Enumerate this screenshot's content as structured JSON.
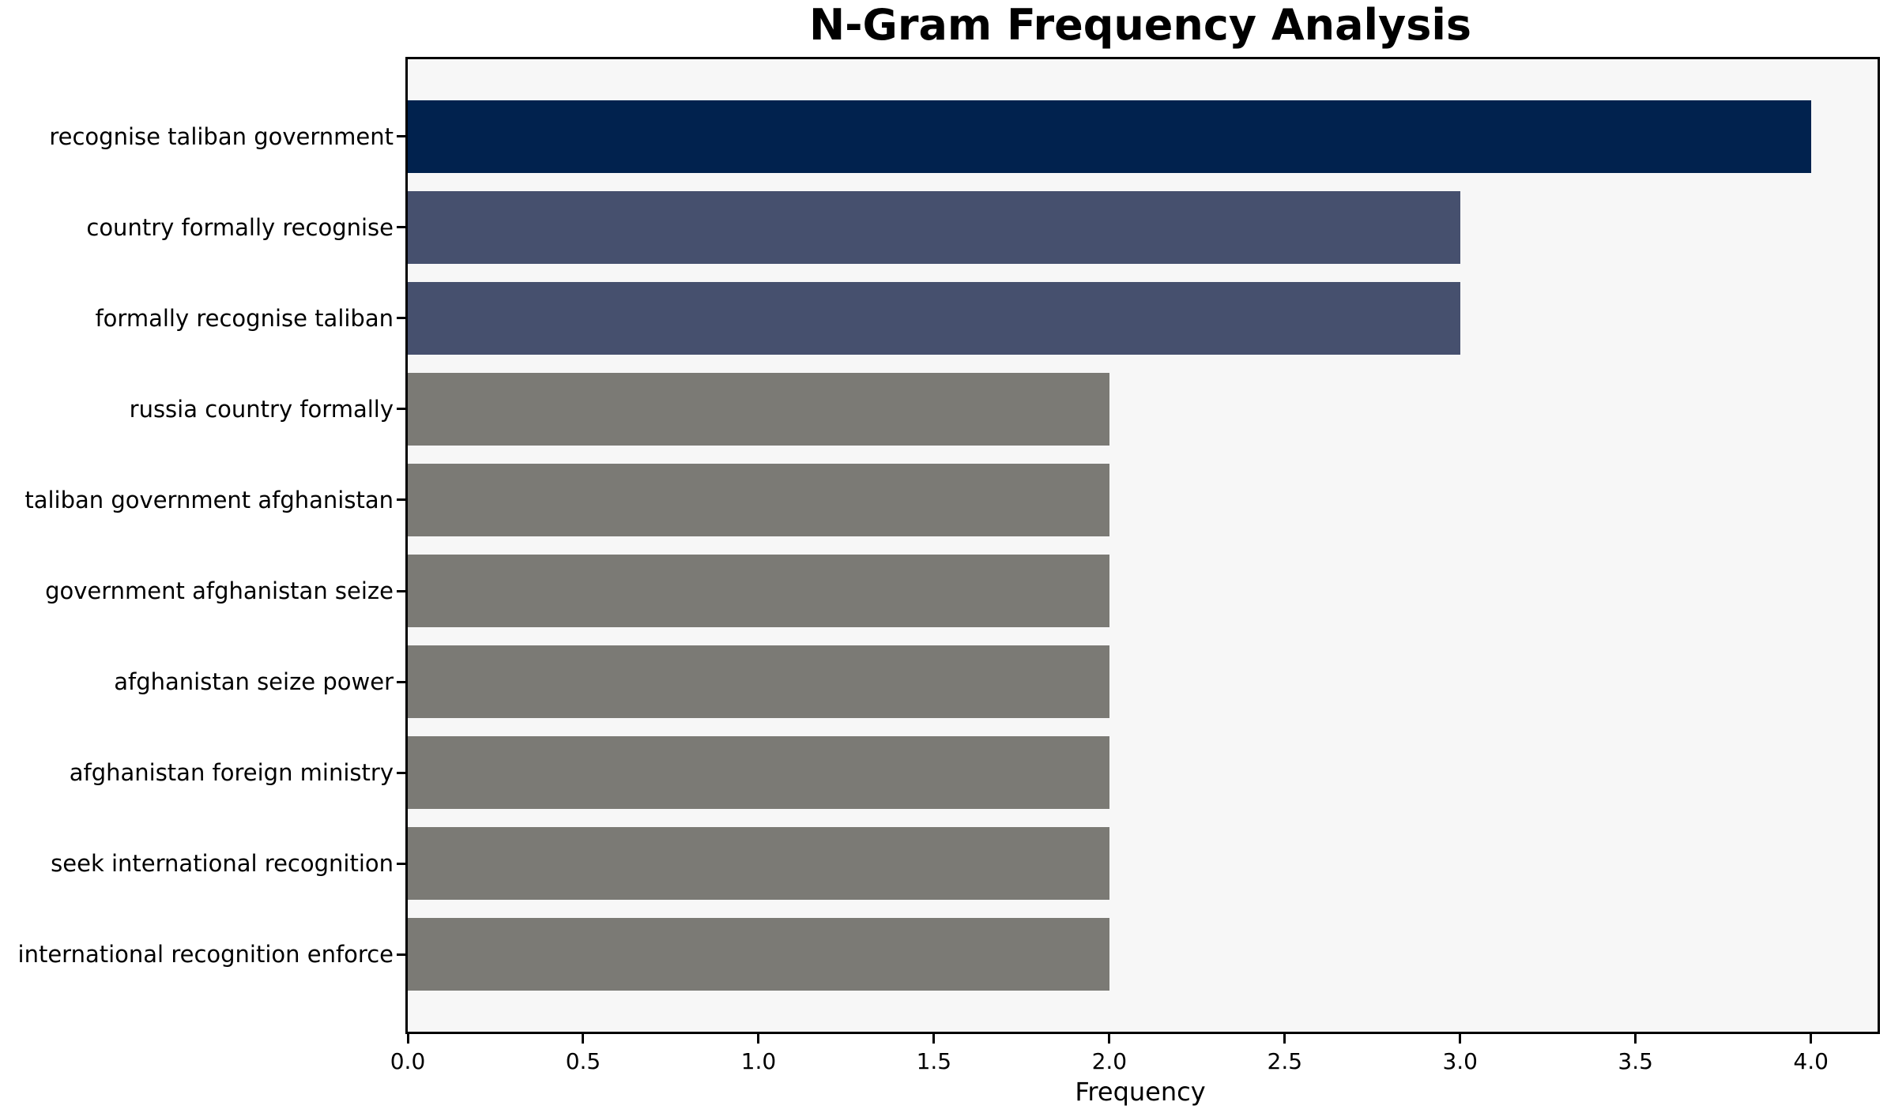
{
  "chart_data": {
    "type": "bar",
    "orientation": "horizontal",
    "title": "N-Gram Frequency Analysis",
    "xlabel": "Frequency",
    "ylabel": "",
    "categories": [
      "recognise taliban government",
      "country formally recognise",
      "formally recognise taliban",
      "russia country formally",
      "taliban government afghanistan",
      "government afghanistan seize",
      "afghanistan seize power",
      "afghanistan foreign ministry",
      "seek international recognition",
      "international recognition enforce"
    ],
    "values": [
      4,
      3,
      3,
      2,
      2,
      2,
      2,
      2,
      2,
      2
    ],
    "bar_colors": [
      "#01224e",
      "#46506e",
      "#46506e",
      "#7b7a75",
      "#7b7a75",
      "#7b7a75",
      "#7b7a75",
      "#7b7a75",
      "#7b7a75",
      "#7b7a75"
    ],
    "xlim": [
      0,
      4.19
    ],
    "xticks": [
      0.0,
      0.5,
      1.0,
      1.5,
      2.0,
      2.5,
      3.0,
      3.5,
      4.0
    ],
    "xtick_labels": [
      "0.0",
      "0.5",
      "1.0",
      "1.5",
      "2.0",
      "2.5",
      "3.0",
      "3.5",
      "4.0"
    ],
    "grid": false,
    "legend": false,
    "plot_bg": "#f7f7f7",
    "figure_bg": "#ffffff",
    "spine_color": "#000000",
    "bar_height_fraction": 0.8
  }
}
